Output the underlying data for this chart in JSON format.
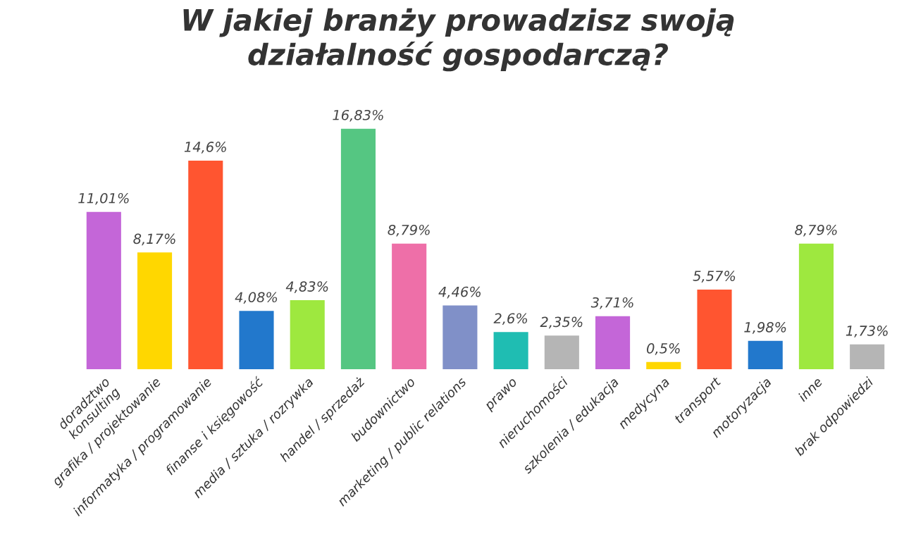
{
  "chart_data": {
    "type": "bar",
    "title": "W jakiej branży prowadzisz swoją\ndziałalność gospodarczą?",
    "categories": [
      "doradztwo\nkonsulting",
      "grafika / projektowanie",
      "informatyka / programowanie",
      "finanse i księgowość",
      "media / sztuka / rozrywka",
      "handel / sprzedaż",
      "budownictwo",
      "marketing / public relations",
      "prawo",
      "nieruchomości",
      "szkolenia / edukacja",
      "medycyna",
      "transport",
      "motoryzacja",
      "inne",
      "brak odpowiedzi"
    ],
    "values": [
      11.01,
      8.17,
      14.6,
      4.08,
      4.83,
      16.83,
      8.79,
      4.46,
      2.6,
      2.35,
      3.71,
      0.5,
      5.57,
      1.98,
      8.79,
      1.73
    ],
    "value_labels": [
      "11,01%",
      "8,17%",
      "14,6%",
      "4,08%",
      "4,83%",
      "16,83%",
      "8,79%",
      "4,46%",
      "2,6%",
      "2,35%",
      "3,71%",
      "0,5%",
      "5,57%",
      "1,98%",
      "8,79%",
      "1,73%"
    ],
    "colors": [
      "#c466d8",
      "#ffd700",
      "#ff5530",
      "#2278cc",
      "#9ee83f",
      "#55c682",
      "#ee6fa8",
      "#8090c8",
      "#1fbdb2",
      "#b5b5b5",
      "#c466d8",
      "#ffd700",
      "#ff5530",
      "#2278cc",
      "#9ee83f",
      "#b5b5b5"
    ],
    "grid": false,
    "legend": false
  }
}
